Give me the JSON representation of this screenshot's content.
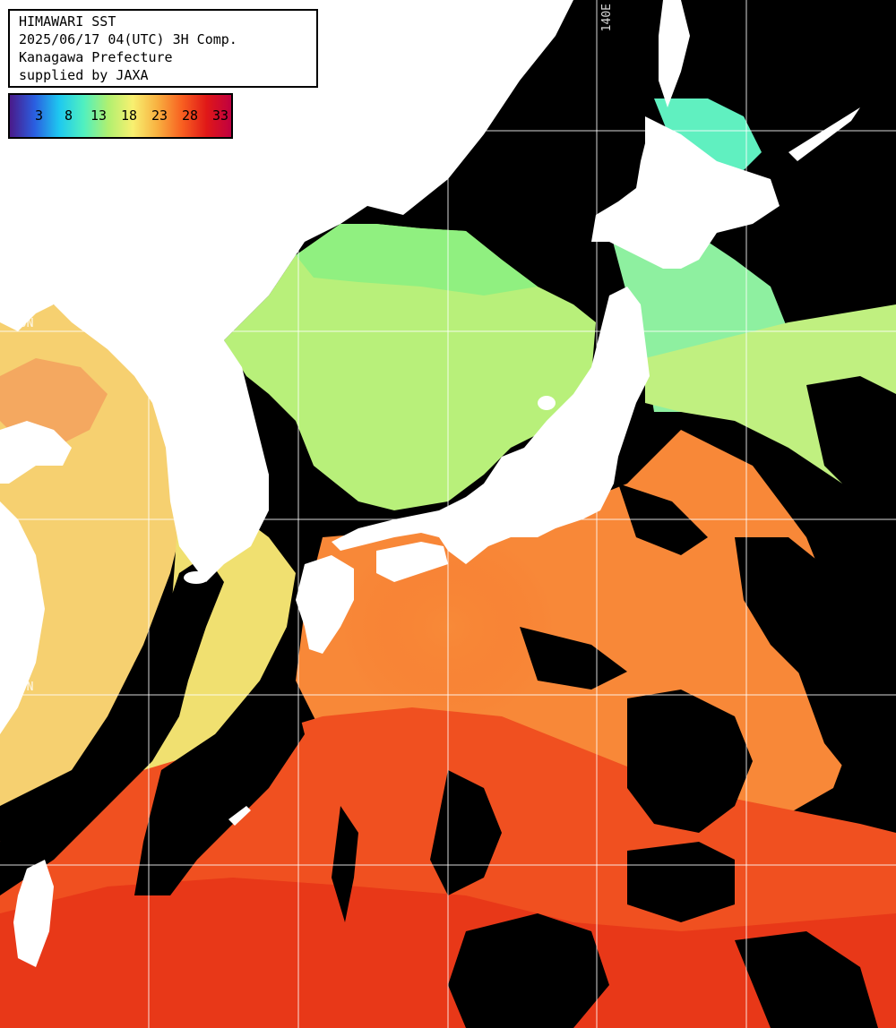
{
  "header": {
    "line1": "HIMAWARI SST",
    "line2": "2025/06/17 04(UTC) 3H Comp.",
    "line3": "Kanagawa Prefecture",
    "line4": "supplied by JAXA"
  },
  "colorbar": {
    "ticks": [
      "3",
      "8",
      "13",
      "18",
      "23",
      "28",
      "33"
    ],
    "colors": [
      "#4a1a8a",
      "#2a5ee0",
      "#1ec8f0",
      "#50f0c0",
      "#b0f070",
      "#f8f070",
      "#f8b040",
      "#f86020",
      "#e01818",
      "#c00040"
    ]
  },
  "grid": {
    "lon_label": "140E",
    "lat_labels": [
      "40N",
      "30N"
    ]
  },
  "palette": {
    "land": "#ffffff",
    "no_data": "#000000",
    "grid_line": "#ffffff"
  }
}
